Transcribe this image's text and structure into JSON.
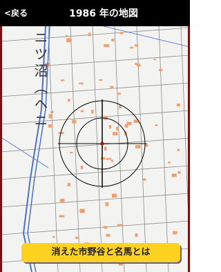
{
  "header": {
    "back": "<戻る",
    "title": "1986 年の地図"
  },
  "map": {
    "label": "ニツ沼（ヘニ"
  },
  "button": {
    "label": "消えた市野谷と名馬とは"
  }
}
